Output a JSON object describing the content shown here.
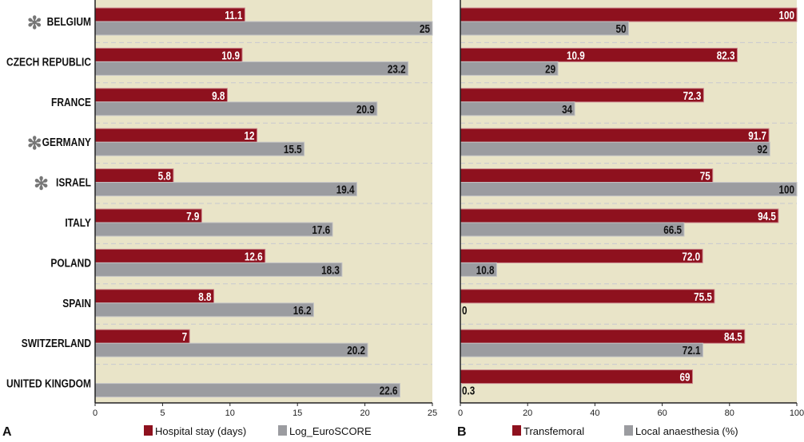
{
  "chart_data": [
    {
      "panel": "A",
      "type": "bar",
      "orientation": "horizontal",
      "categories": [
        "BELGIUM",
        "CZECH REPUBLIC",
        "FRANCE",
        "GERMANY",
        "ISRAEL",
        "ITALY",
        "POLAND",
        "SPAIN",
        "SWITZERLAND",
        "UNITED KINGDOM"
      ],
      "starred": [
        true,
        false,
        false,
        true,
        true,
        false,
        false,
        false,
        false,
        false
      ],
      "star_symbol": "✻",
      "series": [
        {
          "name": "Hospital stay (days)",
          "color": "#8e111e",
          "values": [
            11.1,
            10.9,
            9.8,
            12,
            5.8,
            7.9,
            12.6,
            8.8,
            7,
            null
          ],
          "labels": [
            "11.1",
            "10.9",
            "9.8",
            "12",
            "5.8",
            "7.9",
            "12.6",
            "8.8",
            "7",
            null
          ]
        },
        {
          "name": "Log_EuroSCORE",
          "color": "#9b9ca0",
          "values": [
            25,
            23.2,
            20.9,
            15.5,
            19.4,
            17.6,
            18.3,
            16.2,
            20.2,
            22.6
          ],
          "labels": [
            "25",
            "23.2",
            "20.9",
            "15.5",
            "19.4",
            "17.6",
            "18.3",
            "16.2",
            "20.2",
            "22.6"
          ]
        }
      ],
      "xlim": [
        0,
        25
      ],
      "xticks": [
        "0",
        "5",
        "10",
        "15",
        "20",
        "25"
      ],
      "xtick_values": [
        0,
        5,
        10,
        15,
        20,
        25
      ],
      "grid": "dashed row separators"
    },
    {
      "panel": "B",
      "type": "bar",
      "orientation": "horizontal",
      "categories": [
        "BELGIUM",
        "CZECH REPUBLIC",
        "FRANCE",
        "GERMANY",
        "ISRAEL",
        "ITALY",
        "POLAND",
        "SPAIN",
        "SWITZERLAND",
        "UNITED KINGDOM"
      ],
      "series": [
        {
          "name": "Transfemoral",
          "color": "#8e111e",
          "values": [
            100,
            82.3,
            72.3,
            91.7,
            75,
            94.5,
            72.0,
            75.5,
            84.5,
            69
          ],
          "labels": [
            "100",
            "82.3",
            "72.3",
            "91.7",
            "75",
            "94.5",
            "72.0",
            "75.5",
            "84.5",
            "69"
          ]
        },
        {
          "name": "Local anaesthesia (%)",
          "color": "#9b9ca0",
          "values": [
            50,
            29,
            34,
            92,
            100,
            66.5,
            10.8,
            0,
            72.1,
            0.3
          ],
          "labels": [
            "50",
            "29",
            "34",
            "92",
            "100",
            "66.5",
            "10.8",
            "0",
            "72.1",
            "0.3"
          ]
        }
      ],
      "annotations": [
        {
          "category": "CZECH REPUBLIC",
          "series": "Transfemoral",
          "text": "10.9",
          "at_value": 37
        }
      ],
      "xlim": [
        0,
        100
      ],
      "xticks": [
        "0",
        "20",
        "40",
        "60",
        "80",
        "100"
      ],
      "xtick_values": [
        0,
        20,
        40,
        60,
        80,
        100
      ],
      "grid": "dashed row separators"
    }
  ],
  "panel_letters": {
    "a": "A",
    "b": "B"
  },
  "background_color": "#e9e4c8"
}
